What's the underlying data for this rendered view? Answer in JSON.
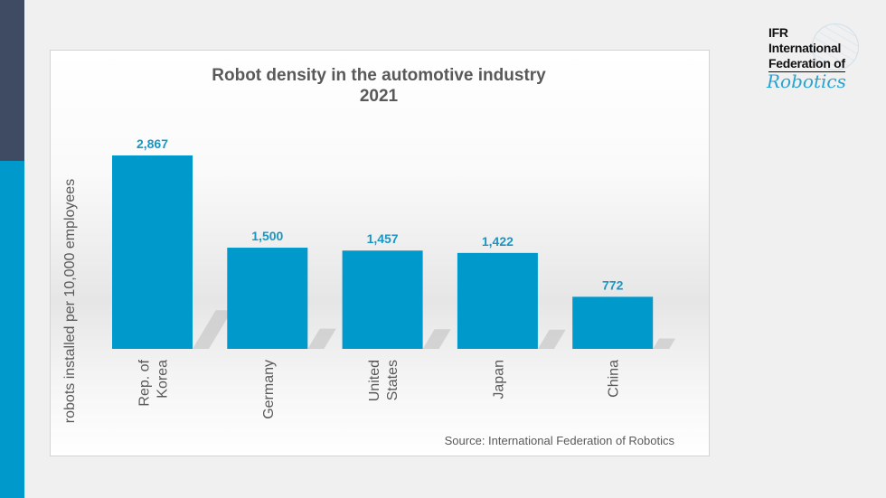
{
  "logo": {
    "line1": "IFR",
    "line2": "International",
    "line3": "Federation of",
    "line4": "Robotics"
  },
  "colors": {
    "bar": "#0099cc",
    "value_label": "#1a96c4",
    "text": "#595959",
    "strip_dark": "#3f4b63",
    "strip_blue": "#0099cc"
  },
  "chart_data": {
    "type": "bar",
    "title": "Robot density in the automotive industry",
    "subtitle": "2021",
    "ylabel": "robots installed per 10,000 employees",
    "xlabel": "",
    "categories": [
      [
        "Rep. of",
        "Korea"
      ],
      [
        "Germany"
      ],
      [
        "United",
        "States"
      ],
      [
        "Japan"
      ],
      [
        "China"
      ]
    ],
    "values": [
      2867,
      1500,
      1457,
      1422,
      772
    ],
    "value_labels": [
      "2,867",
      "1,500",
      "1,457",
      "1,422",
      "772"
    ],
    "ylim": [
      0,
      2867
    ],
    "grid": false,
    "source": "Source: International Federation of Robotics"
  }
}
